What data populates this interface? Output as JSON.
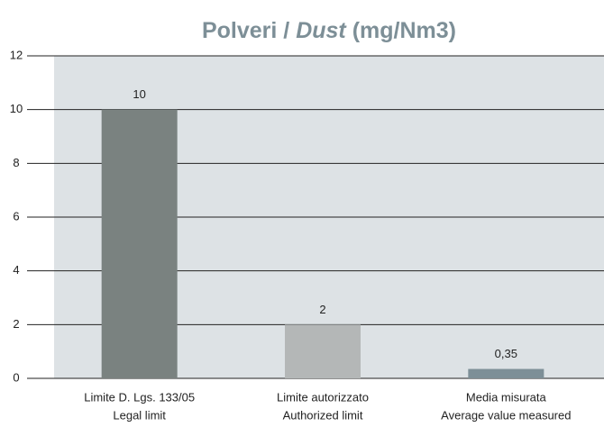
{
  "chart_data": {
    "type": "bar",
    "title": [
      "Polveri / ",
      "Dust",
      " (mg/Nm3)"
    ],
    "categories": [
      [
        "Limite D. Lgs. 133/05",
        "Legal limit"
      ],
      [
        "Limite autorizzato",
        "Authorized limit"
      ],
      [
        "Media misurata",
        "Average value measured"
      ]
    ],
    "values": [
      10,
      2,
      0.35
    ],
    "value_labels": [
      "10",
      "2",
      "0,35"
    ],
    "colors": [
      "#7a8280",
      "#b4b7b7",
      "#7d8f97"
    ],
    "ylim": [
      0,
      12
    ],
    "yticks": [
      0,
      2,
      4,
      6,
      8,
      10,
      12
    ],
    "grid": true
  }
}
